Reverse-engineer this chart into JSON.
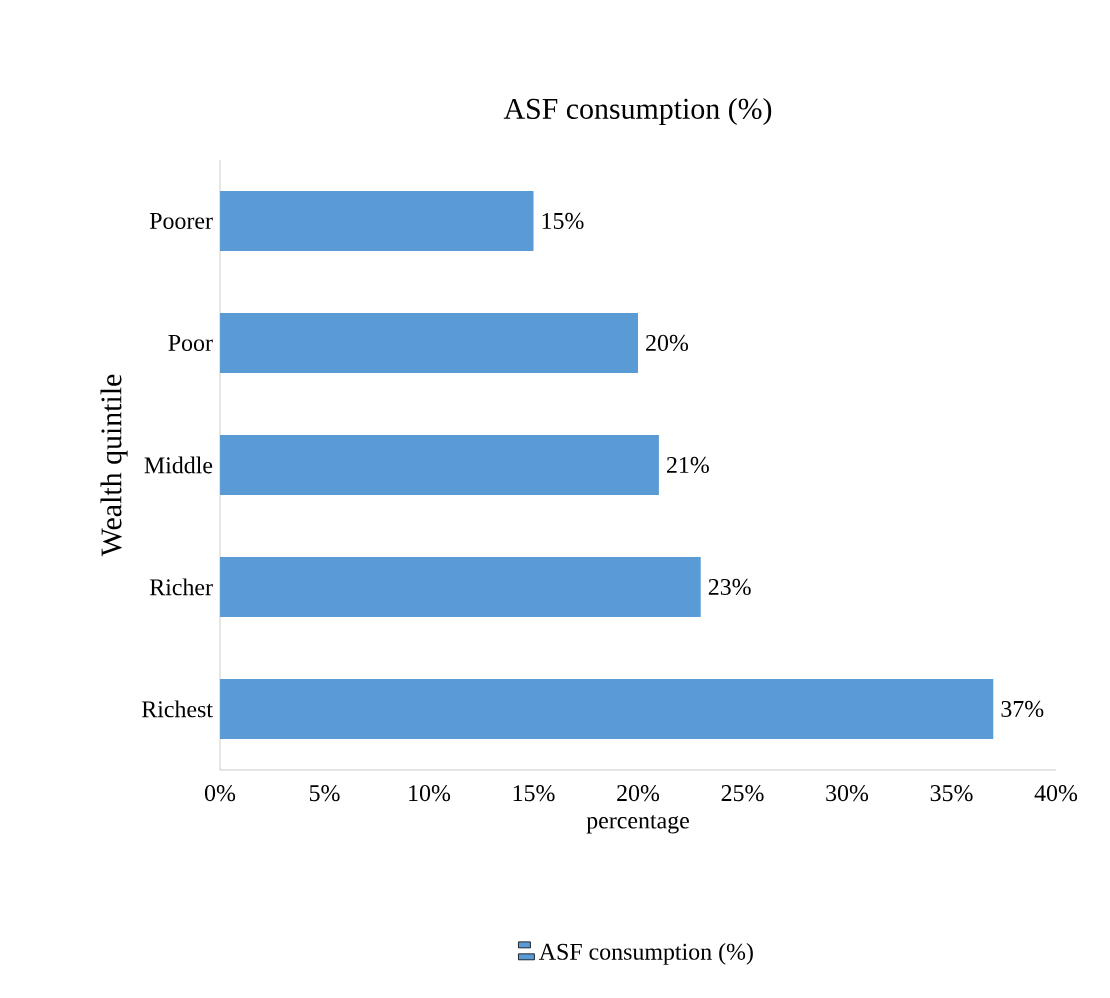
{
  "chart_data": {
    "type": "bar",
    "orientation": "horizontal",
    "title": "ASF consumption (%)",
    "xlabel": "percentage",
    "ylabel": "Wealth quintile",
    "categories": [
      "Poorer",
      "Poor",
      "Middle",
      "Richer",
      "Richest"
    ],
    "series": [
      {
        "name": "ASF consumption (%)",
        "color": "#5b9bd5",
        "values": [
          15,
          20,
          21,
          23,
          37
        ],
        "value_labels": [
          "15%",
          "20%",
          "21%",
          "23%",
          "37%"
        ]
      }
    ],
    "xlim": [
      0,
      40
    ],
    "xticks": [
      {
        "value": 0,
        "label": "0%"
      },
      {
        "value": 5,
        "label": "5%"
      },
      {
        "value": 10,
        "label": "10%"
      },
      {
        "value": 15,
        "label": "15%"
      },
      {
        "value": 20,
        "label": "20%"
      },
      {
        "value": 25,
        "label": "25%"
      },
      {
        "value": 30,
        "label": "30%"
      },
      {
        "value": 35,
        "label": "35%"
      },
      {
        "value": 40,
        "label": "40%"
      }
    ],
    "grid": false,
    "legend": "bottom"
  }
}
